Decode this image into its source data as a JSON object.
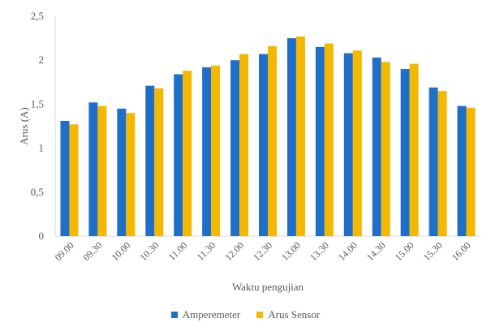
{
  "chart_data": {
    "type": "bar",
    "categories": [
      "09.00",
      "09.30",
      "10.00",
      "10.30",
      "11.00",
      "11.30",
      "12.00",
      "12.30",
      "13.00",
      "13.30",
      "14.00",
      "14.30",
      "15.00",
      "15.30",
      "16.00"
    ],
    "series": [
      {
        "name": "Amperemeter",
        "color": "#1f6fc9",
        "values": [
          1.31,
          1.52,
          1.45,
          1.71,
          1.84,
          1.92,
          2.0,
          2.07,
          2.25,
          2.15,
          2.08,
          2.03,
          1.9,
          1.69,
          1.48
        ]
      },
      {
        "name": "Arus Sensor",
        "color": "#f5b800",
        "values": [
          1.27,
          1.48,
          1.4,
          1.68,
          1.88,
          1.94,
          2.07,
          2.16,
          2.27,
          2.19,
          2.11,
          1.98,
          1.96,
          1.65,
          1.46
        ]
      }
    ],
    "title": "",
    "xlabel": "Waktu pengujian",
    "ylabel": "Arus (A)",
    "ylim": [
      0,
      2.5
    ],
    "yticks": [
      "0",
      "0,5",
      "1",
      "1,5",
      "2",
      "2,5"
    ],
    "grid": false,
    "legend": "bottom"
  }
}
